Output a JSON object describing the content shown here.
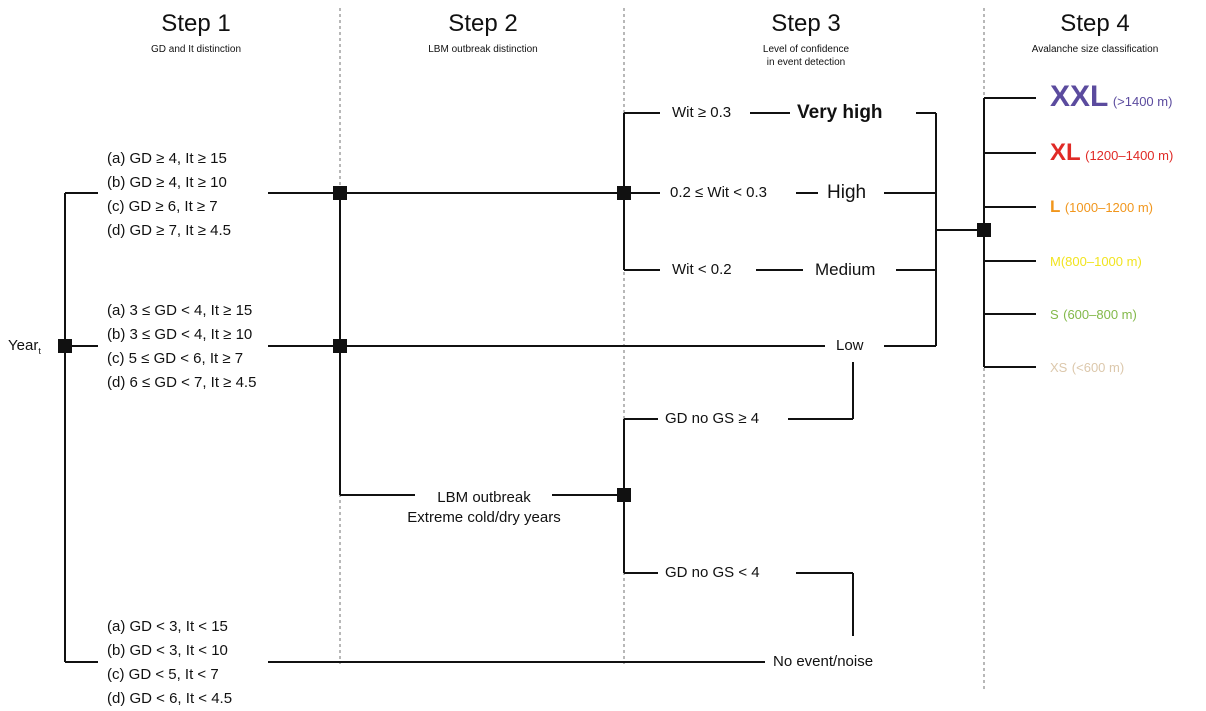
{
  "steps": [
    {
      "title": "Step 1",
      "subtitle": "GD and It distinction"
    },
    {
      "title": "Step 2",
      "subtitle": "LBM outbreak distinction"
    },
    {
      "title": "Step 3",
      "subtitle_line1": "Level of confidence",
      "subtitle_line2": "in event detection"
    },
    {
      "title": "Step 4",
      "subtitle": "Avalanche size classification"
    }
  ],
  "root": {
    "label": "Year",
    "subscript": "t"
  },
  "step1_groups": [
    {
      "criteria": [
        "(a) GD ≥ 4, It ≥ 15",
        "(b) GD ≥ 4, It ≥ 10",
        "(c) GD ≥ 6, It ≥ 7",
        "(d) GD ≥ 7, It ≥ 4.5"
      ]
    },
    {
      "criteria": [
        "(a) 3 ≤ GD < 4, It ≥ 15",
        "(b) 3 ≤ GD < 4, It ≥ 10",
        "(c) 5 ≤ GD < 6, It ≥ 7",
        "(d) 6 ≤ GD < 7, It ≥ 4.5"
      ]
    },
    {
      "criteria": [
        "(a) GD < 3, It < 15",
        "(b) GD < 3, It < 10",
        "(c) GD < 5, It < 7",
        "(d) GD < 6, It < 4.5"
      ]
    }
  ],
  "lbm": {
    "line1": "LBM outbreak",
    "line2": "Extreme cold/dry years"
  },
  "wit_conditions": [
    {
      "condition": "Wit ≥ 0.3",
      "level": "Very high"
    },
    {
      "condition": "0.2 ≤ Wit < 0.3",
      "level": "High"
    },
    {
      "condition": "Wit < 0.2",
      "level": "Medium"
    }
  ],
  "low_label": "Low",
  "gs_conditions": [
    "GD no GS ≥ 4",
    "GD no GS < 4"
  ],
  "no_event_label": "No event/noise",
  "size_classes": [
    {
      "code": "XXL",
      "range": "(>1400 m)",
      "color": "#5b4b9e"
    },
    {
      "code": "XL",
      "range": "(1200–1400 m)",
      "color": "#e02a26"
    },
    {
      "code": "L",
      "range": "(1000–1200 m)",
      "color": "#f1961c"
    },
    {
      "code": "M",
      "range": "(800–1000 m)",
      "color": "#f1e421"
    },
    {
      "code": "S",
      "range": "(600–800 m)",
      "color": "#83b94a"
    },
    {
      "code": "XS",
      "range": "(<600 m)",
      "color": "#dcc8ac"
    }
  ],
  "colors": {
    "line": "#111111",
    "divider": "#888888"
  }
}
